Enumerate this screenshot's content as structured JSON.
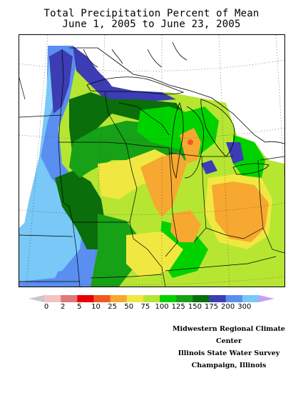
{
  "title": {
    "line1": "Total Precipitation Percent of Mean",
    "line2": "June 1, 2005 to June 23, 2005"
  },
  "legend": {
    "ticks": [
      "0",
      "2",
      "5",
      "10",
      "25",
      "50",
      "75",
      "100",
      "125",
      "150",
      "175",
      "200",
      "300"
    ],
    "colors": [
      "#f5c2c6",
      "#e07878",
      "#e80000",
      "#f05a22",
      "#f7a830",
      "#f0e840",
      "#b6e632",
      "#00d200",
      "#16a116",
      "#0a6e0a",
      "#3c3cb4",
      "#5a8ef0",
      "#78c8f8"
    ],
    "below_color": "#c8c8c8",
    "above_color": "#c8a0f0"
  },
  "credits": {
    "line1": "Midwestern Regional Climate Center",
    "line2": "Illinois State Water Survey",
    "line3": "Champaign, Illinois"
  },
  "map_colors": {
    "light_blue": "#78c8f8",
    "mid_blue": "#5a8ef0",
    "dark_blue": "#3c3cb4",
    "dark_green": "#0a6e0a",
    "green": "#16a116",
    "bright_green": "#00d200",
    "yellow_green": "#b6e632",
    "yellow": "#f0e840",
    "orange": "#f7a830",
    "red_orange": "#f05a22"
  }
}
